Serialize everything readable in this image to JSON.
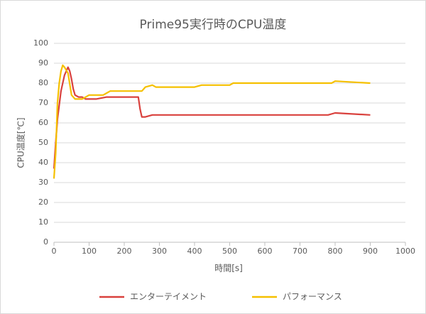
{
  "chart_data": {
    "type": "line",
    "title": "Prime95実行時のCPU温度",
    "x_label": "時間[s]",
    "y_label": "CPU温度[℃]",
    "xlim": [
      0,
      1000
    ],
    "xticks": [
      0,
      100,
      200,
      300,
      400,
      500,
      600,
      700,
      800,
      900,
      1000
    ],
    "ylim": [
      0,
      100
    ],
    "yticks": [
      0,
      10,
      20,
      30,
      40,
      50,
      60,
      70,
      80,
      90,
      100
    ],
    "grid": true,
    "legend": "bottom",
    "series": [
      {
        "name": "エンターテイメント",
        "color": "#d9413d",
        "x": [
          0,
          5,
          10,
          20,
          30,
          40,
          45,
          50,
          55,
          60,
          70,
          80,
          90,
          100,
          120,
          150,
          200,
          240,
          245,
          250,
          260,
          280,
          300,
          400,
          500,
          600,
          700,
          780,
          800,
          900
        ],
        "values": [
          37,
          50,
          62,
          76,
          84,
          88,
          86,
          82,
          77,
          74,
          73,
          73,
          72,
          72,
          72,
          73,
          73,
          73,
          67,
          63,
          63,
          64,
          64,
          64,
          64,
          64,
          64,
          64,
          65,
          64
        ]
      },
      {
        "name": "パフォーマンス",
        "color": "#f5c000",
        "x": [
          0,
          5,
          10,
          15,
          20,
          25,
          30,
          40,
          50,
          60,
          70,
          80,
          100,
          140,
          150,
          160,
          250,
          260,
          280,
          290,
          400,
          420,
          500,
          510,
          790,
          800,
          900
        ],
        "values": [
          32,
          45,
          70,
          80,
          86,
          89,
          88,
          85,
          74,
          72,
          72,
          72,
          74,
          74,
          75,
          76,
          76,
          78,
          79,
          78,
          78,
          79,
          79,
          80,
          80,
          81,
          80
        ]
      }
    ]
  }
}
